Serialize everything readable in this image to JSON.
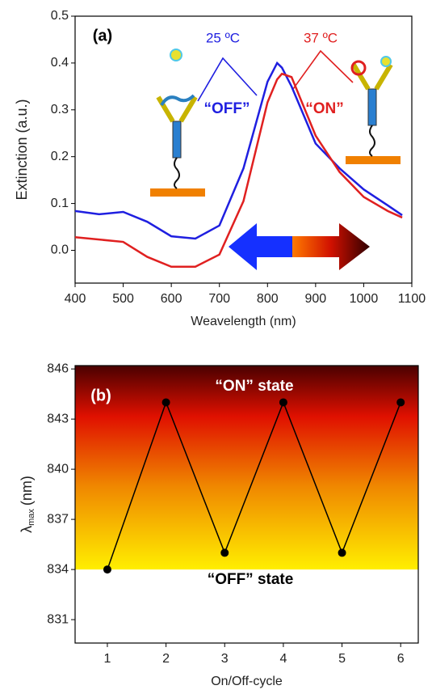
{
  "chart_data": [
    {
      "type": "line",
      "panel": "(a)",
      "x_label": "Weavelength (nm)",
      "y_label": "Extinction (a.u.)",
      "x": [
        400,
        450,
        500,
        550,
        600,
        650,
        700,
        750,
        800,
        820,
        830,
        850,
        900,
        950,
        1000,
        1050,
        1080
      ],
      "series": [
        {
          "name": "25 ºC",
          "color": "#1f1fe0",
          "values": [
            0.084,
            0.077,
            0.082,
            0.061,
            0.03,
            0.025,
            0.053,
            0.175,
            0.36,
            0.4,
            0.39,
            0.35,
            0.228,
            0.175,
            0.13,
            0.096,
            0.075
          ]
        },
        {
          "name": "37 ºC",
          "color": "#e02020",
          "values": [
            0.028,
            0.023,
            0.018,
            -0.014,
            -0.035,
            -0.035,
            -0.009,
            0.105,
            0.316,
            0.365,
            0.377,
            0.37,
            0.245,
            0.167,
            0.114,
            0.084,
            0.07
          ]
        }
      ],
      "annotations": [
        {
          "text": "“OFF”",
          "color": "#1f1fe0"
        },
        {
          "text": "“ON”",
          "color": "#e02020"
        }
      ],
      "xlim": [
        400,
        1100
      ],
      "xticks": [
        400,
        500,
        600,
        700,
        800,
        900,
        1000,
        1100
      ],
      "ylim": [
        -0.07,
        0.5
      ],
      "yticks": [
        {
          "value": 0,
          "label": "0.0"
        },
        0.1,
        0.2,
        0.3,
        0.4,
        0.5
      ]
    },
    {
      "type": "line",
      "panel": "(b)",
      "x_label": "On/Off-cycle",
      "y_label": {
        "symbol": "λ",
        "subscript": "max",
        "unit": "(nm)"
      },
      "x": [
        1,
        2,
        3,
        4,
        5,
        6
      ],
      "series": [
        {
          "color": "#000000",
          "values": [
            834,
            844,
            835,
            844,
            835,
            844
          ]
        }
      ],
      "annotations": [
        {
          "text": "“ON” state",
          "color": "#ffffff"
        },
        {
          "text": "“OFF” state",
          "color": "#000000"
        }
      ],
      "xlim": [
        0.45,
        6.3
      ],
      "xticks": [
        1,
        2,
        3,
        4,
        5,
        6
      ],
      "ylim": [
        829.6,
        846.2
      ],
      "yticks": [
        831,
        834,
        837,
        840,
        843,
        846
      ]
    }
  ]
}
